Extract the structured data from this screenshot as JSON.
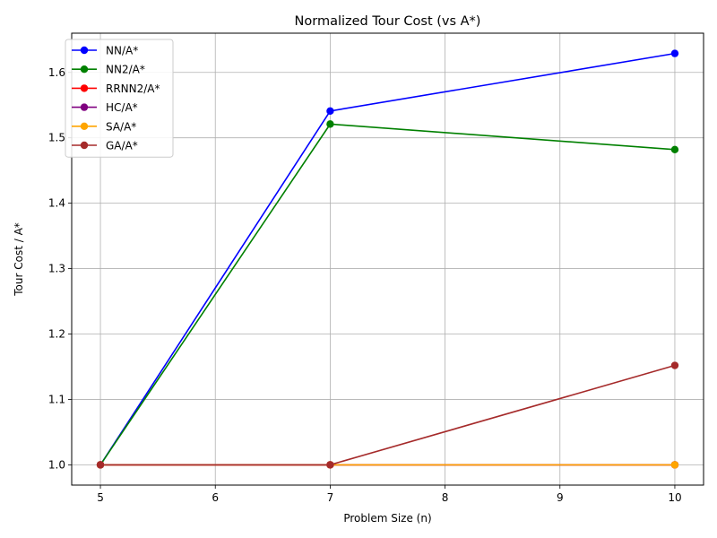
{
  "chart_data": {
    "type": "line",
    "title": "Normalized Tour Cost (vs A*)",
    "xlabel": "Problem Size (n)",
    "ylabel": "Tour Cost / A*",
    "x": [
      5,
      7,
      10
    ],
    "xlim": [
      4.75,
      10.25
    ],
    "ylim": [
      0.969,
      1.66
    ],
    "xticks": [
      5,
      6,
      7,
      8,
      9,
      10
    ],
    "yticks": [
      1.0,
      1.1,
      1.2,
      1.3,
      1.4,
      1.5,
      1.6
    ],
    "ytick_labels": [
      "1.0",
      "1.1",
      "1.2",
      "1.3",
      "1.4",
      "1.5",
      "1.6"
    ],
    "grid": true,
    "legend_position": "top-left",
    "series": [
      {
        "name": "NN/A*",
        "color": "#0000ff",
        "values": [
          1.0,
          1.541,
          1.629
        ]
      },
      {
        "name": "NN2/A*",
        "color": "#008000",
        "values": [
          1.0,
          1.521,
          1.482
        ]
      },
      {
        "name": "RRNN2/A*",
        "color": "#ff0000",
        "values": [
          1.0,
          1.0,
          1.0
        ]
      },
      {
        "name": "HC/A*",
        "color": "#800080",
        "values": [
          1.0,
          1.0,
          1.0
        ]
      },
      {
        "name": "SA/A*",
        "color": "#ffa500",
        "values": [
          1.0,
          1.0,
          1.0
        ]
      },
      {
        "name": "GA/A*",
        "color": "#a52a2a",
        "values": [
          1.0,
          1.0,
          1.152
        ]
      }
    ]
  }
}
